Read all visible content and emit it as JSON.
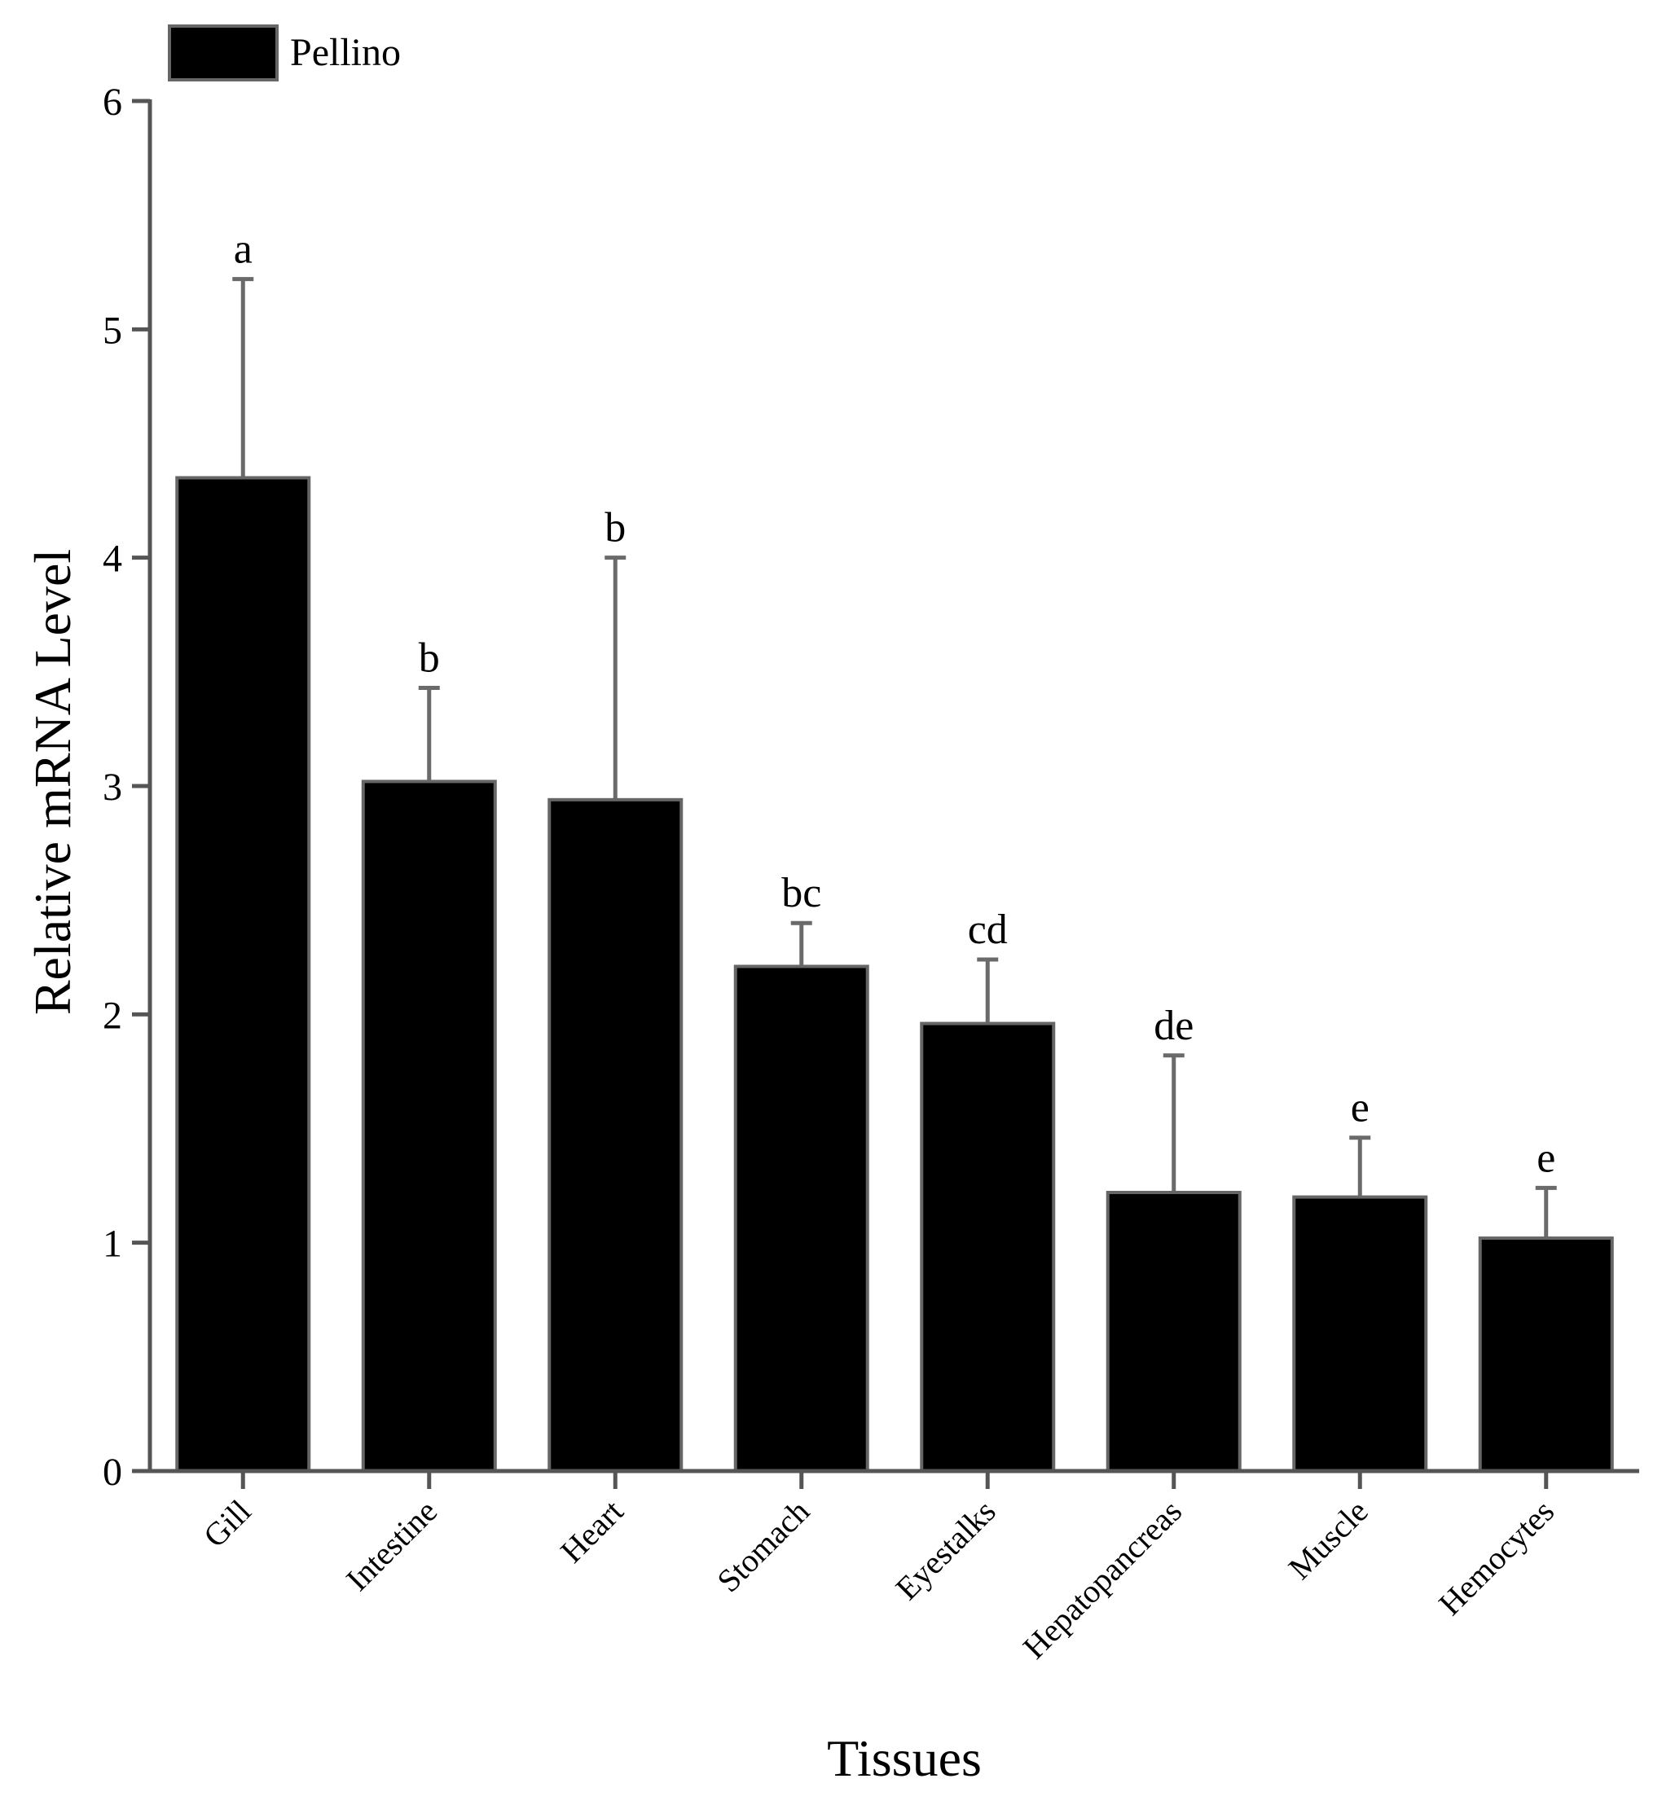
{
  "chart_data": {
    "type": "bar",
    "title": "",
    "xlabel": "Tissues",
    "ylabel": "Relative mRNA Level",
    "ylim": [
      0,
      6
    ],
    "yticks": [
      0,
      1,
      2,
      3,
      4,
      5,
      6
    ],
    "grid": false,
    "legend_position": "top-left",
    "categories": [
      "Gill",
      "Intestine",
      "Heart",
      "Stomach",
      "Eyestalks",
      "Hepatopancreas",
      "Muscle",
      "Hemocytes"
    ],
    "series": [
      {
        "name": "Pellino",
        "color": "#000000",
        "values": [
          4.35,
          3.02,
          2.94,
          2.21,
          1.96,
          1.22,
          1.2,
          1.02
        ],
        "error": [
          0.87,
          0.41,
          1.06,
          0.19,
          0.28,
          0.6,
          0.26,
          0.22
        ],
        "significance": [
          "a",
          "b",
          "b",
          "bc",
          "cd",
          "de",
          "e",
          "e"
        ]
      }
    ]
  }
}
